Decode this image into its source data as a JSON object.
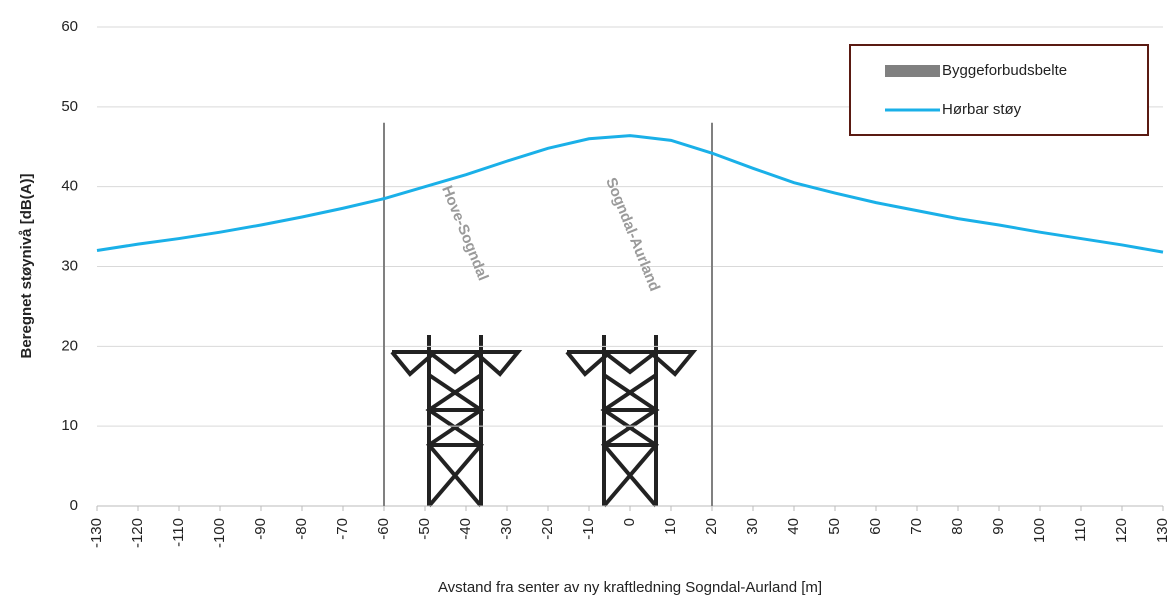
{
  "chart_data": {
    "type": "line",
    "x_label": "Avstand fra senter av ny kraftledning Sogndal-Aurland [m]",
    "y_label": "Beregnet støynivå [dB(A)]",
    "xlim": [
      -130,
      130
    ],
    "ylim": [
      0,
      60
    ],
    "xticks": [
      -130,
      -120,
      -110,
      -100,
      -90,
      -80,
      -70,
      -60,
      -50,
      -40,
      -30,
      -20,
      -10,
      0,
      10,
      20,
      30,
      40,
      50,
      60,
      70,
      80,
      90,
      100,
      110,
      120,
      130
    ],
    "yticks": [
      0,
      10,
      20,
      30,
      40,
      50,
      60
    ],
    "grid": true,
    "x": [
      -130,
      -120,
      -110,
      -100,
      -90,
      -80,
      -70,
      -60,
      -50,
      -40,
      -30,
      -20,
      -10,
      0,
      10,
      20,
      30,
      40,
      50,
      60,
      70,
      80,
      90,
      100,
      110,
      120,
      130
    ],
    "series": [
      {
        "name": "Hørbar støy",
        "color": "#1ab0e8",
        "values": [
          32,
          32.8,
          33.5,
          34.3,
          35.2,
          36.2,
          37.3,
          38.5,
          40,
          41.5,
          43.2,
          44.8,
          46,
          46.4,
          45.8,
          44.2,
          42.3,
          40.5,
          39.2,
          38,
          37,
          36,
          35.2,
          34.3,
          33.5,
          32.7,
          31.8
        ]
      }
    ],
    "zone": {
      "name": "Byggeforbudsbelte",
      "color": "#808080",
      "x": [
        -60,
        20
      ],
      "top": 48
    },
    "annotations": [
      {
        "text": "Hove-Sogndal",
        "x": -45,
        "y": 40
      },
      {
        "text": "Sogndal-Aurland",
        "x": -5,
        "y": 41
      }
    ],
    "legend_position": "upper right"
  }
}
